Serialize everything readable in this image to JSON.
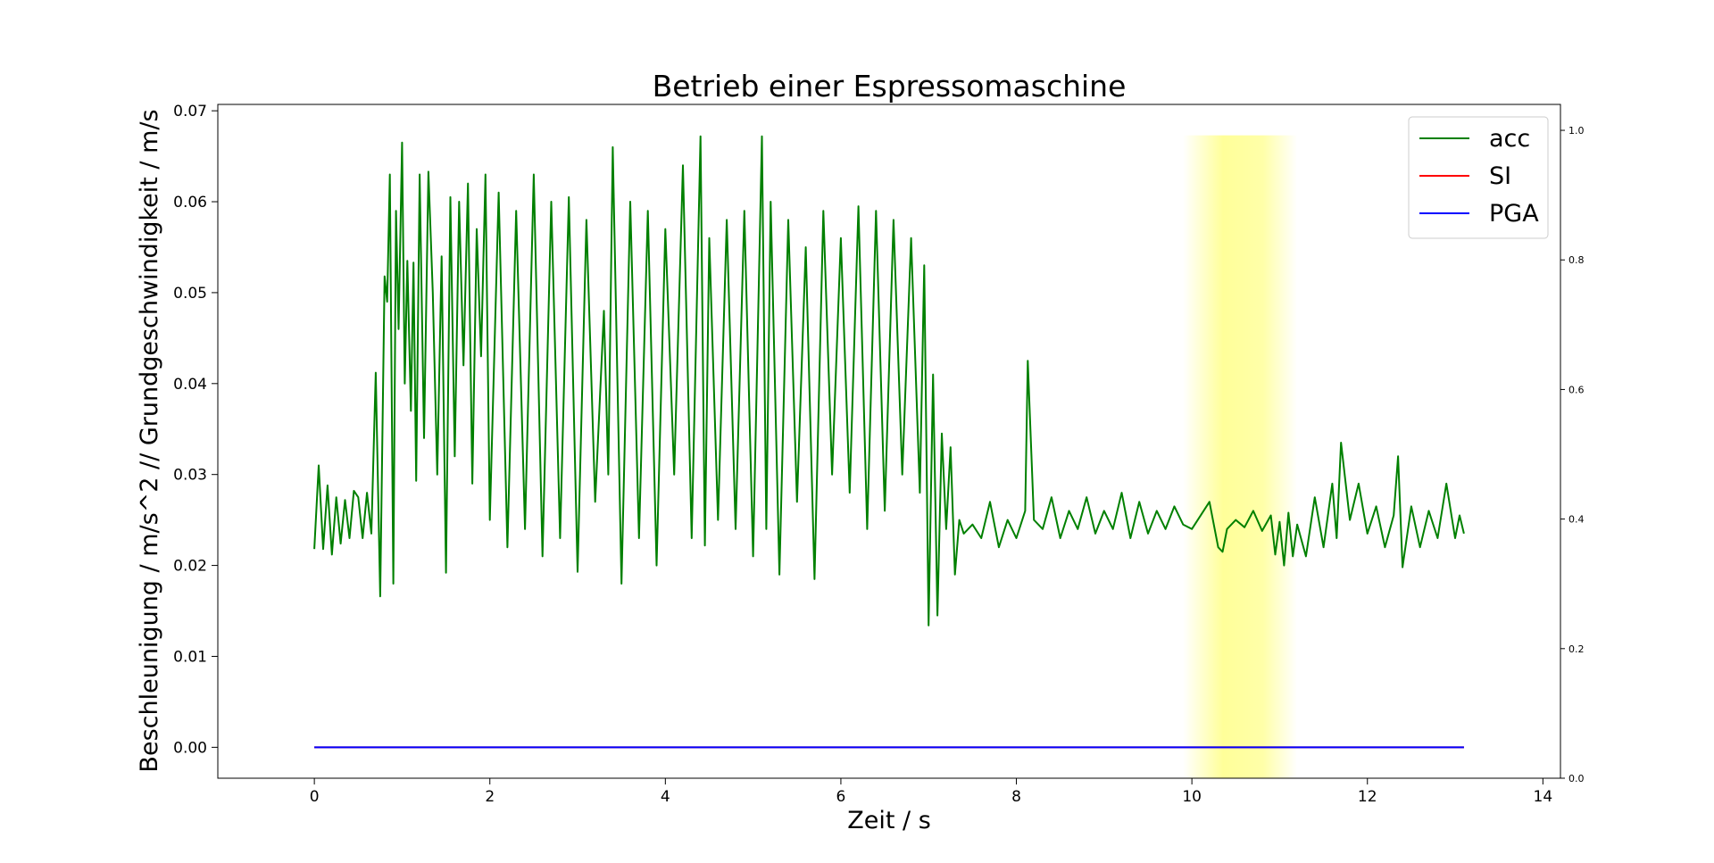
{
  "chart_data": {
    "type": "line",
    "title": "Betrieb einer Espressomaschine",
    "xlabel": "Zeit / s",
    "ylabel": "Beschleunigung / m/s^2 // Grundgeschwindigkeit / m/s",
    "xlim": [
      -1.1,
      14.2
    ],
    "ylim": [
      -0.0034,
      0.0707
    ],
    "ylim_right": [
      0.0,
      1.04
    ],
    "x_ticks": [
      0,
      2,
      4,
      6,
      8,
      10,
      12,
      14
    ],
    "y_ticks": [
      0.0,
      0.01,
      0.02,
      0.03,
      0.04,
      0.05,
      0.06,
      0.07
    ],
    "y_ticks_right": [
      0.0,
      0.2,
      0.4,
      0.6,
      0.8,
      1.0
    ],
    "grid": false,
    "legend_position": "top-right",
    "highlight": {
      "x_start": 9.9,
      "x_end": 11.2,
      "y_top": 0.0673,
      "color": "#ffff99"
    },
    "series": [
      {
        "name": "acc",
        "color": "#008000",
        "x": [
          0.0,
          0.05,
          0.1,
          0.15,
          0.2,
          0.25,
          0.3,
          0.35,
          0.4,
          0.45,
          0.5,
          0.55,
          0.6,
          0.65,
          0.7,
          0.75,
          0.8,
          0.83,
          0.86,
          0.9,
          0.93,
          0.96,
          1.0,
          1.03,
          1.06,
          1.1,
          1.13,
          1.16,
          1.2,
          1.25,
          1.3,
          1.35,
          1.4,
          1.45,
          1.5,
          1.55,
          1.6,
          1.65,
          1.7,
          1.75,
          1.8,
          1.85,
          1.9,
          1.95,
          2.0,
          2.1,
          2.2,
          2.3,
          2.4,
          2.5,
          2.6,
          2.7,
          2.8,
          2.9,
          3.0,
          3.1,
          3.2,
          3.3,
          3.35,
          3.4,
          3.5,
          3.6,
          3.7,
          3.8,
          3.9,
          4.0,
          4.1,
          4.2,
          4.3,
          4.4,
          4.45,
          4.5,
          4.6,
          4.7,
          4.8,
          4.9,
          5.0,
          5.1,
          5.15,
          5.2,
          5.3,
          5.4,
          5.5,
          5.6,
          5.7,
          5.8,
          5.9,
          6.0,
          6.1,
          6.2,
          6.3,
          6.4,
          6.5,
          6.6,
          6.7,
          6.8,
          6.9,
          6.95,
          7.0,
          7.05,
          7.1,
          7.15,
          7.2,
          7.25,
          7.3,
          7.35,
          7.4,
          7.5,
          7.6,
          7.7,
          7.8,
          7.9,
          8.0,
          8.1,
          8.13,
          8.2,
          8.3,
          8.4,
          8.5,
          8.6,
          8.7,
          8.8,
          8.9,
          9.0,
          9.1,
          9.2,
          9.3,
          9.4,
          9.5,
          9.6,
          9.7,
          9.8,
          9.9,
          10.0,
          10.2,
          10.3,
          10.35,
          10.4,
          10.5,
          10.6,
          10.7,
          10.8,
          10.9,
          10.95,
          11.0,
          11.05,
          11.1,
          11.15,
          11.2,
          11.3,
          11.4,
          11.5,
          11.6,
          11.65,
          11.7,
          11.8,
          11.9,
          12.0,
          12.1,
          12.2,
          12.3,
          12.35,
          12.4,
          12.5,
          12.6,
          12.7,
          12.8,
          12.9,
          13.0,
          13.05,
          13.1
        ],
        "values": [
          0.0218,
          0.031,
          0.0218,
          0.0288,
          0.0212,
          0.0275,
          0.0224,
          0.0272,
          0.023,
          0.0282,
          0.0275,
          0.023,
          0.028,
          0.0235,
          0.0412,
          0.0166,
          0.0518,
          0.049,
          0.063,
          0.018,
          0.059,
          0.046,
          0.0665,
          0.04,
          0.0535,
          0.037,
          0.0533,
          0.0293,
          0.063,
          0.034,
          0.0633,
          0.05,
          0.03,
          0.054,
          0.0192,
          0.0605,
          0.032,
          0.06,
          0.042,
          0.062,
          0.029,
          0.057,
          0.043,
          0.063,
          0.025,
          0.061,
          0.022,
          0.059,
          0.024,
          0.063,
          0.021,
          0.06,
          0.023,
          0.0605,
          0.0193,
          0.058,
          0.027,
          0.048,
          0.03,
          0.066,
          0.018,
          0.06,
          0.023,
          0.059,
          0.02,
          0.057,
          0.03,
          0.064,
          0.023,
          0.0672,
          0.0222,
          0.056,
          0.025,
          0.058,
          0.024,
          0.059,
          0.021,
          0.0672,
          0.024,
          0.06,
          0.019,
          0.058,
          0.027,
          0.055,
          0.0185,
          0.059,
          0.03,
          0.056,
          0.028,
          0.0595,
          0.024,
          0.059,
          0.026,
          0.058,
          0.03,
          0.056,
          0.028,
          0.053,
          0.0134,
          0.041,
          0.0145,
          0.0345,
          0.024,
          0.033,
          0.019,
          0.025,
          0.0235,
          0.0245,
          0.023,
          0.027,
          0.022,
          0.025,
          0.023,
          0.026,
          0.0425,
          0.025,
          0.024,
          0.0275,
          0.023,
          0.026,
          0.024,
          0.0275,
          0.0235,
          0.026,
          0.024,
          0.028,
          0.023,
          0.027,
          0.0235,
          0.026,
          0.024,
          0.0265,
          0.0245,
          0.024,
          0.027,
          0.022,
          0.0215,
          0.024,
          0.025,
          0.0242,
          0.026,
          0.0238,
          0.0255,
          0.0212,
          0.0248,
          0.02,
          0.0258,
          0.021,
          0.0245,
          0.021,
          0.0275,
          0.022,
          0.029,
          0.023,
          0.0335,
          0.025,
          0.029,
          0.0235,
          0.0265,
          0.022,
          0.0255,
          0.032,
          0.0198,
          0.0265,
          0.022,
          0.026,
          0.023,
          0.029,
          0.023,
          0.0255,
          0.0235
        ]
      },
      {
        "name": "SI",
        "color": "#ff0000",
        "x": [
          0.0,
          13.1
        ],
        "values": [
          0.0,
          0.0
        ]
      },
      {
        "name": "PGA",
        "color": "#0000ff",
        "x": [
          0.0,
          13.1
        ],
        "values": [
          0.0,
          0.0
        ]
      }
    ]
  }
}
